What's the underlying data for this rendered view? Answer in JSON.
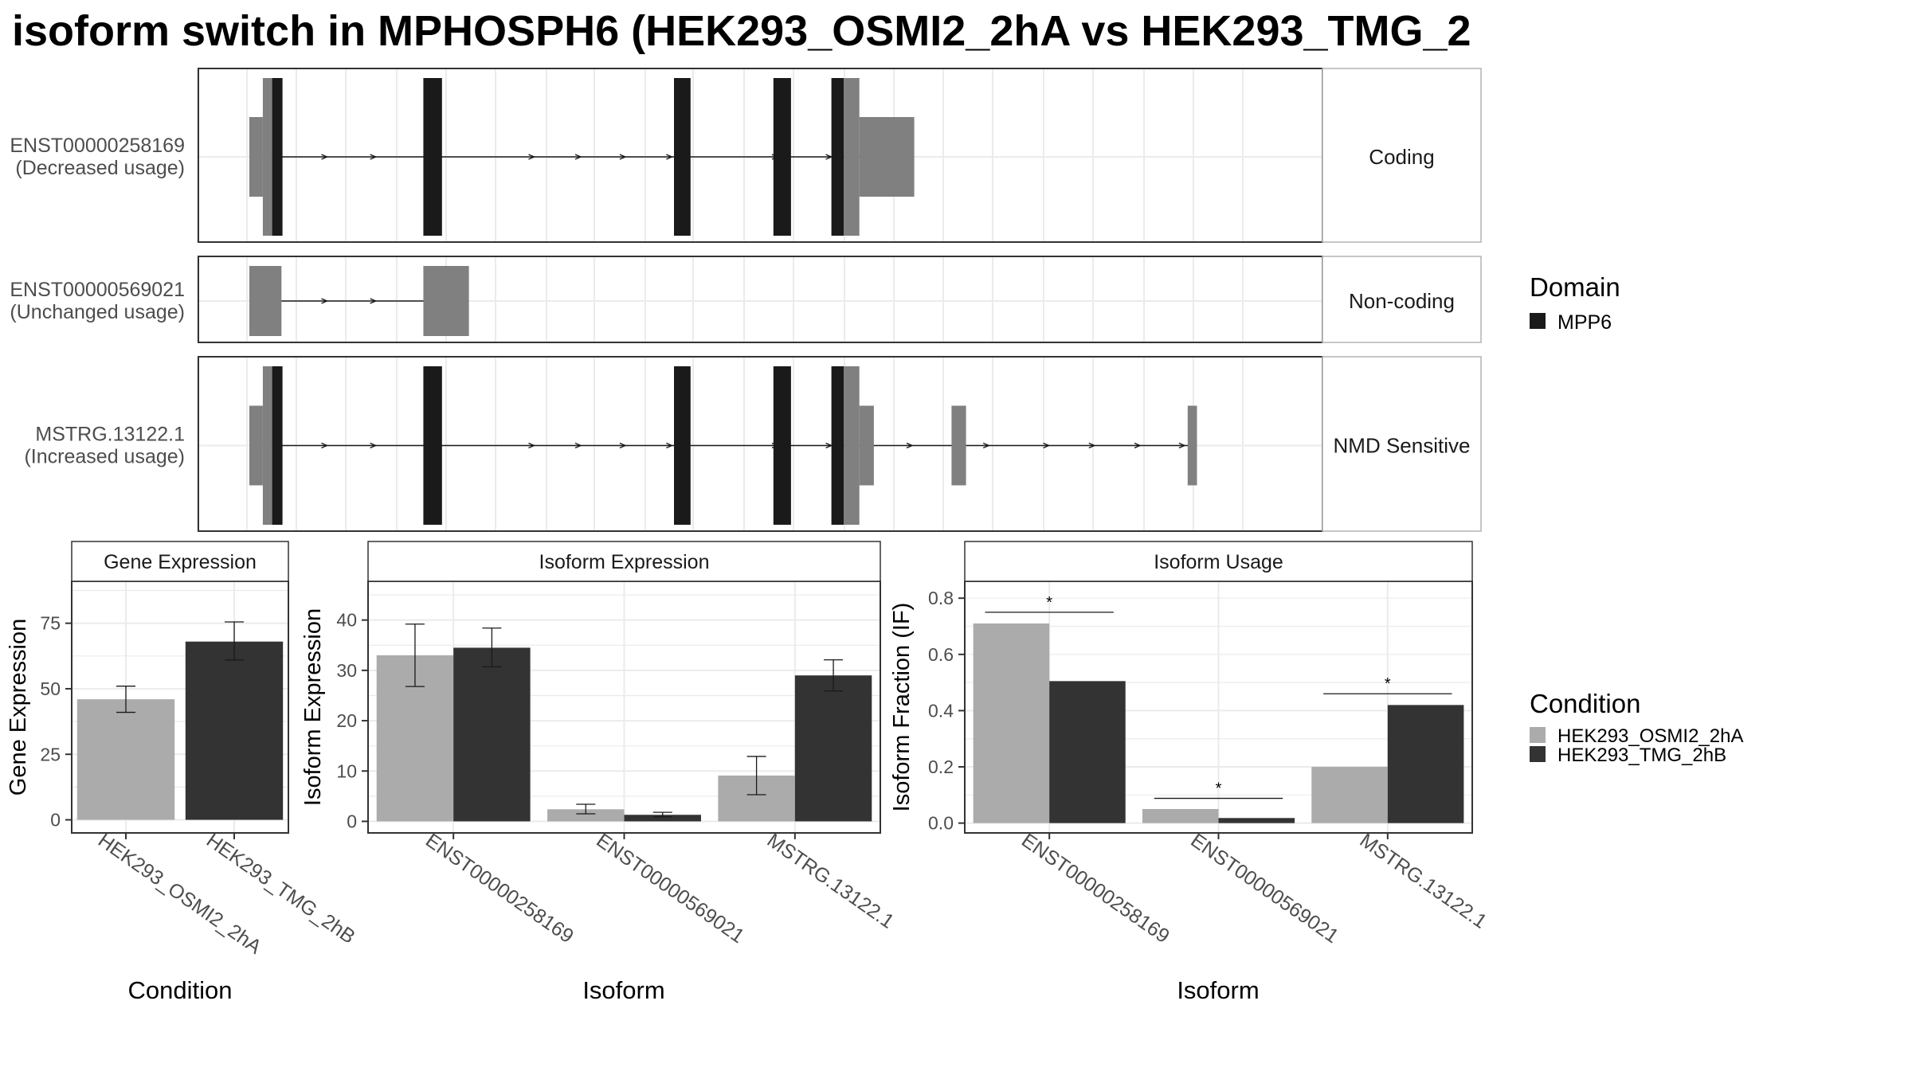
{
  "page": {
    "title": "isoform switch in MPHOSPH6 (HEK293_OSMI2_2hA vs HEK293_TMG_2"
  },
  "colors": {
    "cond_a": "#ababab",
    "cond_b": "#333333",
    "domain": "#1a1a1a",
    "utr": "#808080",
    "grid": "#ebebeb",
    "panel_border": "#333333",
    "strip_border": "#b3b3b3"
  },
  "structure": {
    "genomic_range": [
      0,
      1000
    ],
    "domain_legend": {
      "title": "Domain",
      "items": [
        {
          "label": "MPP6",
          "color": "#1a1a1a"
        }
      ]
    },
    "isoforms": [
      {
        "id": "ENST00000258169",
        "usage": "(Decreased usage)",
        "category": "Coding",
        "exons": [
          {
            "start": 0,
            "end": 13,
            "kind": "utr-thin"
          },
          {
            "start": 13,
            "end": 22,
            "kind": "utr"
          },
          {
            "start": 22,
            "end": 32,
            "kind": "domain"
          },
          {
            "start": 168,
            "end": 186,
            "kind": "domain"
          },
          {
            "start": 410,
            "end": 426,
            "kind": "domain"
          },
          {
            "start": 506,
            "end": 523,
            "kind": "domain"
          },
          {
            "start": 562,
            "end": 574,
            "kind": "domain"
          },
          {
            "start": 574,
            "end": 589,
            "kind": "utr"
          },
          {
            "start": 589,
            "end": 642,
            "kind": "utr-thin"
          }
        ],
        "arrows": [
          75,
          122,
          275,
          320,
          363,
          408,
          510,
          562
        ]
      },
      {
        "id": "ENST00000569021",
        "usage": "(Unchanged usage)",
        "category": "Non-coding",
        "exons": [
          {
            "start": 0,
            "end": 31,
            "kind": "noncoding"
          },
          {
            "start": 168,
            "end": 212,
            "kind": "noncoding"
          }
        ],
        "arrows": [
          75,
          122
        ]
      },
      {
        "id": "MSTRG.13122.1",
        "usage": "(Increased usage)",
        "category": "NMD Sensitive",
        "exons": [
          {
            "start": 0,
            "end": 13,
            "kind": "utr-thin"
          },
          {
            "start": 13,
            "end": 22,
            "kind": "utr"
          },
          {
            "start": 22,
            "end": 32,
            "kind": "domain"
          },
          {
            "start": 168,
            "end": 186,
            "kind": "domain"
          },
          {
            "start": 410,
            "end": 426,
            "kind": "domain"
          },
          {
            "start": 506,
            "end": 523,
            "kind": "domain"
          },
          {
            "start": 562,
            "end": 574,
            "kind": "domain"
          },
          {
            "start": 574,
            "end": 589,
            "kind": "utr"
          },
          {
            "start": 589,
            "end": 603,
            "kind": "utr-thin"
          },
          {
            "start": 678,
            "end": 692,
            "kind": "utr-thin"
          },
          {
            "start": 906,
            "end": 915,
            "kind": "utr-thin"
          }
        ],
        "arrows": [
          75,
          122,
          275,
          320,
          363,
          408,
          510,
          562,
          640,
          714,
          772,
          816,
          860,
          903
        ]
      }
    ]
  },
  "chart_data": [
    {
      "type": "bar",
      "title": "Gene Expression",
      "xlabel": "Condition",
      "ylabel": "Gene Expression",
      "ylim": [
        -5,
        91
      ],
      "yticks": [
        0,
        25,
        50,
        75
      ],
      "categories": [
        "HEK293_OSMI2_2hA",
        "HEK293_TMG_2hB"
      ],
      "series": [
        {
          "name": "HEK293_OSMI2_2hA",
          "values": [
            46,
            null
          ],
          "err_low": [
            41,
            null
          ],
          "err_high": [
            51,
            null
          ]
        },
        {
          "name": "HEK293_TMG_2hB",
          "values": [
            null,
            68
          ],
          "err_low": [
            null,
            61
          ],
          "err_high": [
            null,
            75.5
          ]
        }
      ]
    },
    {
      "type": "bar",
      "title": "Isoform Expression",
      "xlabel": "Isoform",
      "ylabel": "Isoform Expression",
      "ylim": [
        -2.3,
        47.7
      ],
      "yticks": [
        0,
        10,
        20,
        30,
        40
      ],
      "categories": [
        "ENST00000258169",
        "ENST00000569021",
        "MSTRG.13122.1"
      ],
      "series": [
        {
          "name": "HEK293_OSMI2_2hA",
          "values": [
            33,
            2.4,
            9.1
          ],
          "err_low": [
            26.8,
            1.5,
            5.3
          ],
          "err_high": [
            39.2,
            3.4,
            12.9
          ]
        },
        {
          "name": "HEK293_TMG_2hB",
          "values": [
            34.5,
            1.3,
            29
          ],
          "err_low": [
            30.7,
            0.9,
            25.9
          ],
          "err_high": [
            38.4,
            1.8,
            32.1
          ]
        }
      ]
    },
    {
      "type": "bar",
      "title": "Isoform Usage",
      "xlabel": "Isoform",
      "ylabel": "Isoform Fraction (IF)",
      "ylim": [
        -0.035,
        0.86
      ],
      "yticks": [
        0.0,
        0.2,
        0.4,
        0.6,
        0.8
      ],
      "yticklabels": [
        "0.0",
        "0.2",
        "0.4",
        "0.6",
        "0.8"
      ],
      "categories": [
        "ENST00000258169",
        "ENST00000569021",
        "MSTRG.13122.1"
      ],
      "series": [
        {
          "name": "HEK293_OSMI2_2hA",
          "values": [
            0.71,
            0.05,
            0.2
          ]
        },
        {
          "name": "HEK293_TMG_2hB",
          "values": [
            0.505,
            0.018,
            0.42
          ]
        }
      ],
      "significance": [
        {
          "category": 0,
          "line_y": 0.75,
          "label": "*"
        },
        {
          "category": 1,
          "line_y": 0.088,
          "label": "*"
        },
        {
          "category": 2,
          "line_y": 0.46,
          "label": "*"
        }
      ]
    }
  ],
  "condition_legend": {
    "title": "Condition",
    "items": [
      {
        "label": "HEK293_OSMI2_2hA",
        "color": "#ababab"
      },
      {
        "label": "HEK293_TMG_2hB",
        "color": "#333333"
      }
    ]
  }
}
